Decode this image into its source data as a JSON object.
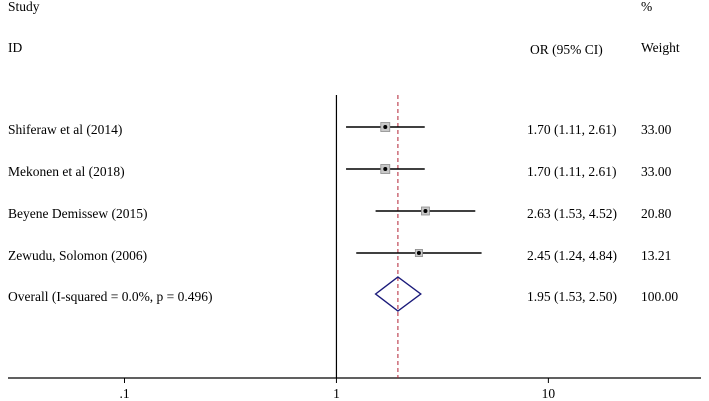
{
  "header": {
    "study_label": "Study",
    "id_label": "ID",
    "ci_label": "OR (95% CI)",
    "pct_label": "%",
    "weight_label": "Weight"
  },
  "rows": [
    {
      "name": "Shiferaw et al (2014)",
      "or_text": "1.70 (1.11, 2.61)",
      "weight_text": "33.00"
    },
    {
      "name": "Mekonen et al (2018)",
      "or_text": "1.70 (1.11, 2.61)",
      "weight_text": "33.00"
    },
    {
      "name": "Beyene Demissew (2015)",
      "or_text": "2.63 (1.53, 4.52)",
      "weight_text": "20.80"
    },
    {
      "name": "Zewudu, Solomon (2006)",
      "or_text": "2.45 (1.24, 4.84)",
      "weight_text": "13.21"
    }
  ],
  "overall": {
    "name": "Overall  (I-squared = 0.0%, p = 0.496)",
    "or_text": "1.95 (1.53, 2.50)",
    "weight_text": "100.00"
  },
  "colors": {
    "ref_line": "#b22234",
    "diamond": "#1a1a7a",
    "box_fill": "#c8c8c8",
    "box_stroke": "#8c8c8c",
    "ci_line": "#000000",
    "axis": "#000000"
  },
  "chart_data": {
    "type": "forest",
    "log_scale": true,
    "xlim": [
      0.0282,
      52.5
    ],
    "null_value": 1,
    "pooled_value": 1.95,
    "ticks": [
      {
        "value": 0.1,
        "label": ".1"
      },
      {
        "value": 1,
        "label": "1"
      },
      {
        "value": 10,
        "label": "10"
      }
    ],
    "studies": [
      {
        "name": "Shiferaw et al (2014)",
        "or": 1.7,
        "lo": 1.11,
        "hi": 2.61,
        "weight": 33.0
      },
      {
        "name": "Mekonen et al (2018)",
        "or": 1.7,
        "lo": 1.11,
        "hi": 2.61,
        "weight": 33.0
      },
      {
        "name": "Beyene Demissew (2015)",
        "or": 2.63,
        "lo": 1.53,
        "hi": 4.52,
        "weight": 20.8
      },
      {
        "name": "Zewudu, Solomon (2006)",
        "or": 2.45,
        "lo": 1.24,
        "hi": 4.84,
        "weight": 13.21
      }
    ],
    "overall": {
      "or": 1.95,
      "lo": 1.53,
      "hi": 2.5,
      "weight": 100.0
    }
  }
}
